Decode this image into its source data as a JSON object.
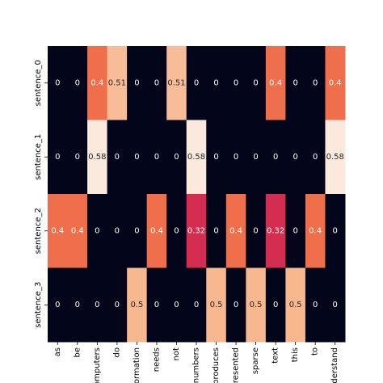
{
  "chart_data": {
    "type": "heatmap",
    "title": "",
    "xlabel": "",
    "ylabel": "",
    "grid": false,
    "legend": "none",
    "x_labels": [
      "as",
      "be",
      "computers",
      "do",
      "information",
      "needs",
      "not",
      "numbers",
      "produces",
      "represented",
      "sparse",
      "text",
      "this",
      "to",
      "understand"
    ],
    "y_labels": [
      "sentence_0",
      "sentence_1",
      "sentence_2",
      "sentence_3"
    ],
    "values": [
      [
        0,
        0,
        0.4,
        0.51,
        0,
        0,
        0.51,
        0,
        0,
        0,
        0,
        0.4,
        0,
        0,
        0.4
      ],
      [
        0,
        0,
        0.58,
        0,
        0,
        0,
        0,
        0.58,
        0,
        0,
        0,
        0,
        0,
        0,
        0.58
      ],
      [
        0.4,
        0.4,
        0,
        0,
        0,
        0.4,
        0,
        0.32,
        0,
        0.4,
        0,
        0.32,
        0,
        0.4,
        0
      ],
      [
        0,
        0,
        0,
        0,
        0.5,
        0,
        0,
        0,
        0.5,
        0,
        0.5,
        0,
        0.5,
        0,
        0
      ]
    ],
    "value_labels": [
      [
        "0",
        "0",
        "0.4",
        "0.51",
        "0",
        "0",
        "0.51",
        "0",
        "0",
        "0",
        "0",
        "0.4",
        "0",
        "0",
        "0.4"
      ],
      [
        "0",
        "0",
        "0.58",
        "0",
        "0",
        "0",
        "0",
        "0.58",
        "0",
        "0",
        "0",
        "0",
        "0",
        "0",
        "0.58"
      ],
      [
        "0.4",
        "0.4",
        "0",
        "0",
        "0",
        "0.4",
        "0",
        "0.32",
        "0",
        "0.4",
        "0",
        "0.32",
        "0",
        "0.4",
        "0"
      ],
      [
        "0",
        "0",
        "0",
        "0",
        "0.5",
        "0",
        "0",
        "0",
        "0.5",
        "0",
        "0.5",
        "0",
        "0.5",
        "0",
        "0"
      ]
    ],
    "color_map": {
      "0": "#03051a",
      "0.32": "#d42d50",
      "0.4": "#ef6f4c",
      "0.5": "#f7b890",
      "0.51": "#f8bd98",
      "0.58": "#fae9dc"
    },
    "dark_text_color": "#262626",
    "light_text_color": "#ffffff"
  }
}
